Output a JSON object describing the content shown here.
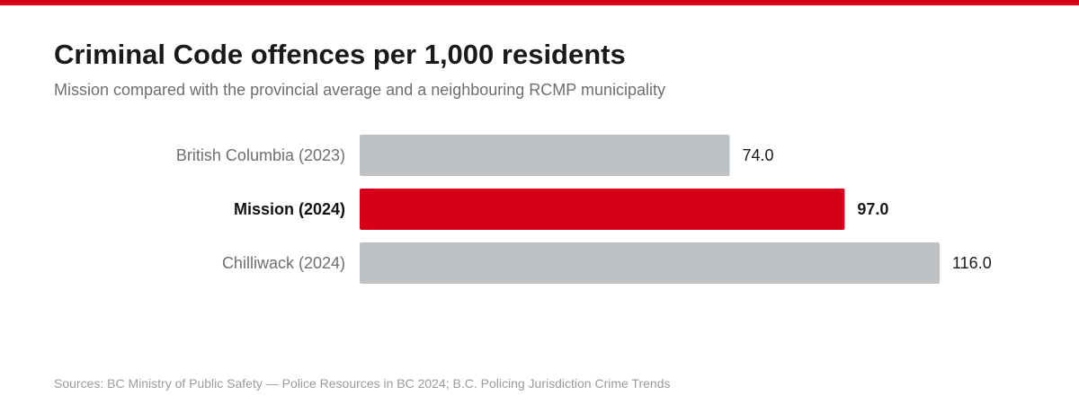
{
  "colors": {
    "accent": "#d7001a",
    "bar_default": "#bfc2c4",
    "label_default": "#6f6f6f",
    "label_highlight": "#111111",
    "value_text": "#1a1a1a"
  },
  "header": {
    "title": "Criminal Code offences per 1,000 residents",
    "subtitle": "Mission compared with the provincial average and a neighbouring RCMP municipality"
  },
  "footer": {
    "source": "Sources: BC Ministry of Public Safety — Police Resources in BC 2024; B.C. Policing Jurisdiction Crime Trends"
  },
  "chart_data": {
    "type": "bar",
    "orientation": "horizontal",
    "categories": [
      "British Columbia (2023)",
      "Mission (2024)",
      "Chilliwack (2024)"
    ],
    "values": [
      74.0,
      97.0,
      116.0
    ],
    "value_labels": [
      "74.0",
      "97.0",
      "116.0"
    ],
    "highlight_index": 1,
    "title": "Criminal Code offences per 1,000 residents",
    "subtitle": "Mission compared with the provincial average and a neighbouring RCMP municipality",
    "xlabel": "",
    "ylabel": "",
    "xlim": [
      0,
      116
    ],
    "grid": false,
    "legend": "none"
  }
}
